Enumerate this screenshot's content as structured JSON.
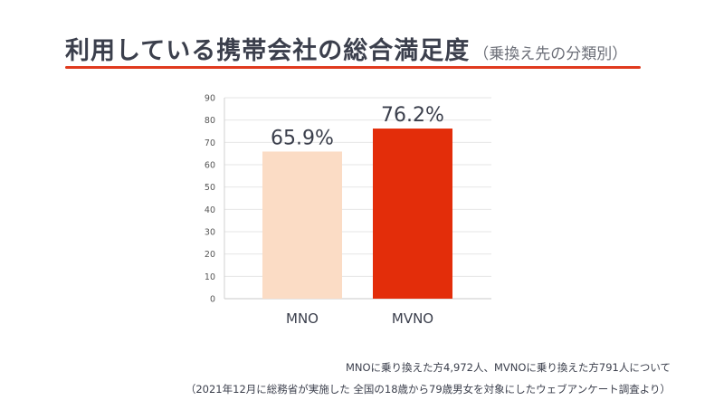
{
  "title": "利用している携帯会社の総合満足度",
  "subtitle": "（乗換え先の分類別）",
  "chart_data": {
    "type": "bar",
    "categories": [
      "MNO",
      "MVNO"
    ],
    "values": [
      65.9,
      76.2
    ],
    "data_labels": [
      "65.9%",
      "76.2%"
    ],
    "ylim": [
      0,
      90
    ],
    "yticks": [
      "0",
      "10",
      "20",
      "30",
      "40",
      "50",
      "60",
      "70",
      "80",
      "90"
    ],
    "grid": true,
    "colors": [
      "#fbdcc5",
      "#e32d0a"
    ]
  },
  "notes": {
    "line1": "MNOに乗り換えた方4,972人、MVNOに乗り換えた方791人について",
    "line2": "（2021年12月に総務省が実施した 全国の18歳から79歳男女を対象にしたウェブアンケート調査より）"
  }
}
